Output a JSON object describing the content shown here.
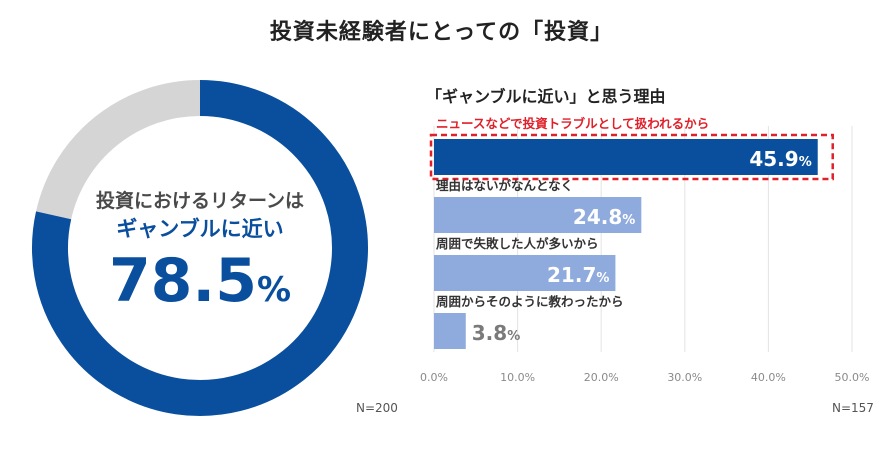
{
  "title": "投資未経験者にとっての「投資」",
  "colors": {
    "donut_main": "#0a4f9e",
    "donut_rest": "#d5d5d5",
    "bar_highlight": "#0a4f9e",
    "bar_normal": "#8faadc",
    "highlight_border": "#e0202a",
    "axis_text": "#8a8a8a"
  },
  "chart_data": [
    {
      "type": "pie",
      "variant": "donut",
      "center_text_line1": "投資におけるリターンは",
      "center_text_line2": "ギャンブルに近い",
      "center_value_number": "78.5",
      "center_value_unit": "%",
      "slices": [
        {
          "label": "ギャンブルに近い",
          "value": 78.5
        },
        {
          "label": "",
          "value": 21.5
        }
      ],
      "sample_size": "N=200"
    },
    {
      "type": "bar",
      "orientation": "horizontal",
      "title": "「ギャンブルに近い」と思う理由",
      "categories": [
        "ニュースなどで投資トラブルとして扱われるから",
        "理由はないがなんとなく",
        "周囲で失敗した人が多いから",
        "周囲からそのように教わったから"
      ],
      "values": [
        45.9,
        24.8,
        21.7,
        3.8
      ],
      "value_labels": [
        {
          "number": "45.9",
          "unit": "%"
        },
        {
          "number": "24.8",
          "unit": "%"
        },
        {
          "number": "21.7",
          "unit": "%"
        },
        {
          "number": "3.8",
          "unit": "%"
        }
      ],
      "highlight_index": 0,
      "xlim": [
        0,
        50
      ],
      "x_ticks": [
        0,
        10,
        20,
        30,
        40,
        50
      ],
      "x_tick_labels": [
        "0.0%",
        "10.0%",
        "20.0%",
        "30.0%",
        "40.0%",
        "50.0%"
      ],
      "grid": true,
      "sample_size": "N=157"
    }
  ]
}
